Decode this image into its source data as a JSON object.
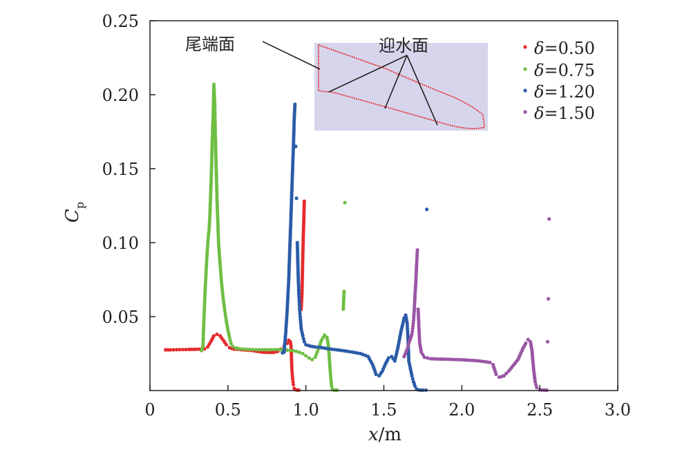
{
  "chart_data": {
    "type": "scatter",
    "xlabel": {
      "var": "x",
      "unit": "/m"
    },
    "ylabel": {
      "var": "C",
      "sub": "p"
    },
    "xlim": [
      0,
      3.0
    ],
    "ylim": [
      0,
      0.25
    ],
    "xticks": [
      0,
      0.5,
      1.0,
      1.5,
      2.0,
      2.5,
      3.0
    ],
    "xtick_labels": [
      "0",
      "0.5",
      "1.0",
      "1.5",
      "2.0",
      "2.5",
      "3.0"
    ],
    "yticks": [
      0.05,
      0.1,
      0.15,
      0.2,
      0.25
    ],
    "ytick_labels": [
      "0.05",
      "0.10",
      "0.15",
      "0.20",
      "0.25"
    ],
    "grid": false,
    "legend_position": "top-right",
    "series": [
      {
        "name": "δ=0.50",
        "delta": "δ",
        "value": "=0.50",
        "color": "#e52b2f",
        "points": [
          [
            0.1,
            0.0275
          ],
          [
            0.13,
            0.0275
          ],
          [
            0.17,
            0.0276
          ],
          [
            0.21,
            0.0277
          ],
          [
            0.25,
            0.0278
          ],
          [
            0.3,
            0.0279
          ],
          [
            0.35,
            0.0282
          ],
          [
            0.37,
            0.0295
          ],
          [
            0.39,
            0.033
          ],
          [
            0.41,
            0.037
          ],
          [
            0.43,
            0.038
          ],
          [
            0.45,
            0.037
          ],
          [
            0.47,
            0.034
          ],
          [
            0.49,
            0.031
          ],
          [
            0.51,
            0.029
          ],
          [
            0.54,
            0.028
          ],
          [
            0.58,
            0.0277
          ],
          [
            0.63,
            0.0272
          ],
          [
            0.67,
            0.0268
          ],
          [
            0.7,
            0.0263
          ],
          [
            0.73,
            0.0259
          ],
          [
            0.76,
            0.0258
          ],
          [
            0.79,
            0.0258
          ],
          [
            0.82,
            0.0265
          ],
          [
            0.84,
            0.028
          ],
          [
            0.86,
            0.03
          ],
          [
            0.88,
            0.032
          ],
          [
            0.89,
            0.034
          ],
          [
            0.9,
            0.033
          ],
          [
            0.905,
            0.03
          ],
          [
            0.91,
            0.015
          ],
          [
            0.915,
            0.008
          ],
          [
            0.92,
            0.004
          ],
          [
            0.925,
            0.0015
          ],
          [
            0.935,
            0.0005
          ],
          [
            0.945,
            0.0003
          ],
          [
            0.955,
            0.0003
          ],
          [
            0.97,
            0.055
          ],
          [
            0.975,
            0.065
          ],
          [
            0.98,
            0.09
          ],
          [
            0.985,
            0.11
          ],
          [
            0.99,
            0.128
          ]
        ]
      },
      {
        "name": "δ=0.75",
        "delta": "δ",
        "value": "=0.75",
        "color": "#6fbe44",
        "points": [
          [
            0.33,
            0.027
          ],
          [
            0.34,
            0.03
          ],
          [
            0.345,
            0.045
          ],
          [
            0.35,
            0.058
          ],
          [
            0.355,
            0.07
          ],
          [
            0.36,
            0.08
          ],
          [
            0.365,
            0.09
          ],
          [
            0.37,
            0.098
          ],
          [
            0.375,
            0.105
          ],
          [
            0.38,
            0.11
          ],
          [
            0.385,
            0.12
          ],
          [
            0.39,
            0.135
          ],
          [
            0.395,
            0.15
          ],
          [
            0.4,
            0.17
          ],
          [
            0.405,
            0.185
          ],
          [
            0.41,
            0.207
          ],
          [
            0.415,
            0.195
          ],
          [
            0.42,
            0.17
          ],
          [
            0.425,
            0.15
          ],
          [
            0.43,
            0.13
          ],
          [
            0.435,
            0.115
          ],
          [
            0.44,
            0.1
          ],
          [
            0.45,
            0.085
          ],
          [
            0.46,
            0.072
          ],
          [
            0.47,
            0.062
          ],
          [
            0.48,
            0.054
          ],
          [
            0.49,
            0.047
          ],
          [
            0.5,
            0.041
          ],
          [
            0.51,
            0.036
          ],
          [
            0.52,
            0.032
          ],
          [
            0.53,
            0.03
          ],
          [
            0.55,
            0.0288
          ],
          [
            0.58,
            0.0282
          ],
          [
            0.62,
            0.0279
          ],
          [
            0.66,
            0.0277
          ],
          [
            0.7,
            0.0276
          ],
          [
            0.74,
            0.0276
          ],
          [
            0.78,
            0.0277
          ],
          [
            0.82,
            0.0277
          ],
          [
            0.86,
            0.0275
          ],
          [
            0.9,
            0.0272
          ],
          [
            0.94,
            0.0265
          ],
          [
            0.98,
            0.025
          ],
          [
            1.0,
            0.0235
          ],
          [
            1.02,
            0.022
          ],
          [
            1.04,
            0.021
          ],
          [
            1.06,
            0.0225
          ],
          [
            1.08,
            0.028
          ],
          [
            1.1,
            0.034
          ],
          [
            1.12,
            0.0375
          ],
          [
            1.135,
            0.036
          ],
          [
            1.145,
            0.03
          ],
          [
            1.155,
            0.015
          ],
          [
            1.16,
            0.008
          ],
          [
            1.165,
            0.003
          ],
          [
            1.17,
            0.001
          ],
          [
            1.18,
            0.0003
          ],
          [
            1.19,
            0.0003
          ],
          [
            1.2,
            0.0003
          ],
          [
            1.24,
            0.055
          ],
          [
            1.245,
            0.067
          ],
          [
            1.25,
            0.127
          ]
        ]
      },
      {
        "name": "δ=1.20",
        "delta": "δ",
        "value": "=1.20",
        "color": "#2b5ba8",
        "points": [
          [
            0.85,
            0.0255
          ],
          [
            0.86,
            0.026
          ],
          [
            0.865,
            0.032
          ],
          [
            0.87,
            0.038
          ],
          [
            0.875,
            0.046
          ],
          [
            0.88,
            0.054
          ],
          [
            0.885,
            0.065
          ],
          [
            0.89,
            0.075
          ],
          [
            0.895,
            0.09
          ],
          [
            0.9,
            0.105
          ],
          [
            0.905,
            0.12
          ],
          [
            0.91,
            0.135
          ],
          [
            0.915,
            0.15
          ],
          [
            0.92,
            0.165
          ],
          [
            0.925,
            0.183
          ],
          [
            0.93,
            0.1935
          ],
          [
            0.935,
            0.165
          ],
          [
            0.94,
            0.13
          ],
          [
            0.945,
            0.1
          ],
          [
            0.95,
            0.08
          ],
          [
            0.955,
            0.065
          ],
          [
            0.96,
            0.055
          ],
          [
            0.965,
            0.048
          ],
          [
            0.97,
            0.042
          ],
          [
            0.98,
            0.037
          ],
          [
            0.99,
            0.033
          ],
          [
            1.0,
            0.031
          ],
          [
            1.03,
            0.03
          ],
          [
            1.06,
            0.0295
          ],
          [
            1.1,
            0.029
          ],
          [
            1.15,
            0.0282
          ],
          [
            1.2,
            0.0275
          ],
          [
            1.25,
            0.0268
          ],
          [
            1.3,
            0.026
          ],
          [
            1.35,
            0.025
          ],
          [
            1.4,
            0.023
          ],
          [
            1.43,
            0.017
          ],
          [
            1.45,
            0.011
          ],
          [
            1.47,
            0.01
          ],
          [
            1.49,
            0.013
          ],
          [
            1.51,
            0.018
          ],
          [
            1.53,
            0.022
          ],
          [
            1.55,
            0.023
          ],
          [
            1.57,
            0.02
          ],
          [
            1.59,
            0.029
          ],
          [
            1.61,
            0.04
          ],
          [
            1.63,
            0.049
          ],
          [
            1.64,
            0.051
          ],
          [
            1.65,
            0.045
          ],
          [
            1.655,
            0.035
          ],
          [
            1.66,
            0.02
          ],
          [
            1.67,
            0.015
          ],
          [
            1.68,
            0.01
          ],
          [
            1.69,
            0.006
          ],
          [
            1.7,
            0.003
          ],
          [
            1.71,
            0.001
          ],
          [
            1.72,
            0.0005
          ],
          [
            1.735,
            0.0003
          ],
          [
            1.75,
            0.0003
          ],
          [
            1.77,
            0.0003
          ],
          [
            1.775,
            0.1225
          ]
        ]
      },
      {
        "name": "δ=1.50",
        "delta": "δ",
        "value": "=1.50",
        "color": "#9a55a5",
        "points": [
          [
            1.63,
            0.023
          ],
          [
            1.65,
            0.028
          ],
          [
            1.66,
            0.032
          ],
          [
            1.67,
            0.035
          ],
          [
            1.68,
            0.038
          ],
          [
            1.685,
            0.042
          ],
          [
            1.69,
            0.047
          ],
          [
            1.695,
            0.054
          ],
          [
            1.7,
            0.065
          ],
          [
            1.705,
            0.073
          ],
          [
            1.71,
            0.085
          ],
          [
            1.715,
            0.095
          ],
          [
            1.72,
            0.055
          ],
          [
            1.725,
            0.042
          ],
          [
            1.73,
            0.032
          ],
          [
            1.74,
            0.026
          ],
          [
            1.76,
            0.0225
          ],
          [
            1.8,
            0.0215
          ],
          [
            1.85,
            0.0213
          ],
          [
            1.9,
            0.0212
          ],
          [
            1.95,
            0.021
          ],
          [
            2.0,
            0.0208
          ],
          [
            2.05,
            0.0205
          ],
          [
            2.1,
            0.0202
          ],
          [
            2.15,
            0.0195
          ],
          [
            2.18,
            0.019
          ],
          [
            2.2,
            0.0175
          ],
          [
            2.22,
            0.011
          ],
          [
            2.24,
            0.009
          ],
          [
            2.27,
            0.01
          ],
          [
            2.3,
            0.013
          ],
          [
            2.33,
            0.017
          ],
          [
            2.36,
            0.021
          ],
          [
            2.39,
            0.028
          ],
          [
            2.41,
            0.032
          ],
          [
            2.425,
            0.0345
          ],
          [
            2.44,
            0.033
          ],
          [
            2.45,
            0.027
          ],
          [
            2.46,
            0.015
          ],
          [
            2.47,
            0.006
          ],
          [
            2.48,
            0.002
          ],
          [
            2.5,
            0.0005
          ],
          [
            2.53,
            0.0003
          ],
          [
            2.545,
            0.0003
          ],
          [
            2.55,
            0.033
          ],
          [
            2.555,
            0.062
          ],
          [
            2.56,
            0.116
          ]
        ]
      }
    ],
    "inset": {
      "labels": [
        {
          "text": "尾端面"
        },
        {
          "text": "迎水面"
        }
      ],
      "box_color": "#d6d5ec",
      "outline_color": "#e52b2f"
    }
  }
}
